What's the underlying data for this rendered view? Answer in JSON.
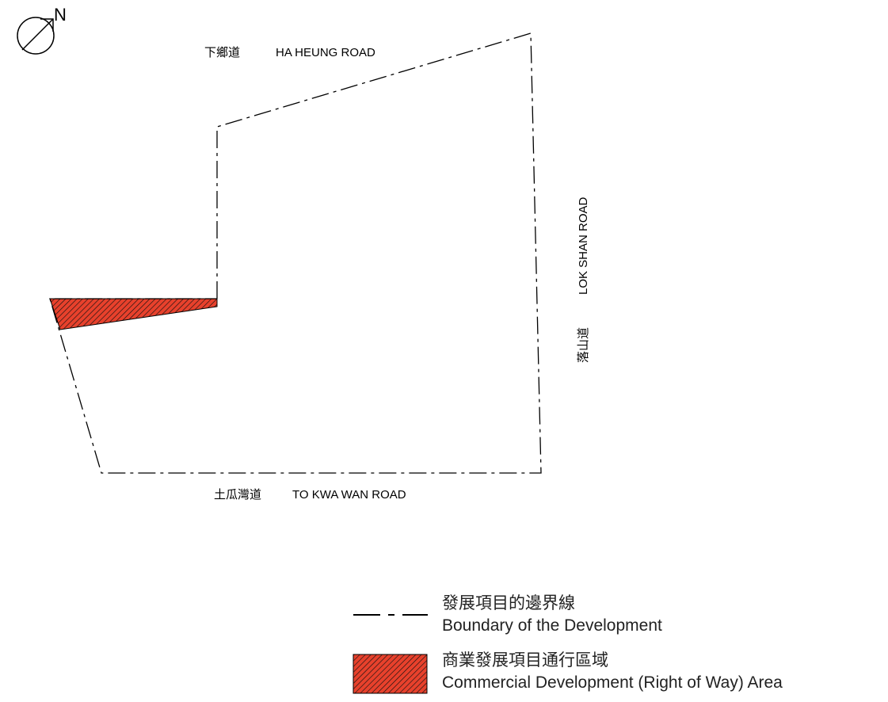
{
  "north_arrow": {
    "label": "N",
    "icon": "north-arrow-icon"
  },
  "roads": {
    "north": {
      "zh": "下鄉道",
      "en": "HA HEUNG ROAD"
    },
    "east": {
      "zh": "落山道",
      "en": "LOK SHAN ROAD"
    },
    "south": {
      "zh": "土瓜灣道",
      "en": "TO KWA WAN ROAD"
    }
  },
  "legend": {
    "boundary": {
      "zh": "發展項目的邊界線",
      "en": "Boundary of the Development"
    },
    "right_of_way": {
      "zh": "商業發展項目通行區域",
      "en": "Commercial Development (Right of Way) Area"
    }
  },
  "colors": {
    "hatch_fill": "#e8412c",
    "hatch_line": "#000000",
    "boundary": "#000000"
  }
}
